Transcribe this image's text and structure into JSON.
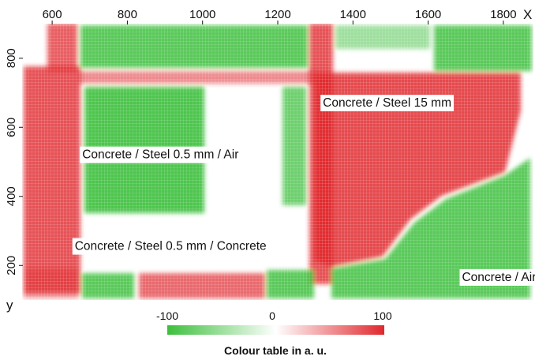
{
  "chart_data": {
    "type": "heatmap",
    "title": "",
    "xlabel": "X",
    "ylabel": "y",
    "x_ticks": [
      600,
      800,
      1000,
      1200,
      1400,
      1600,
      1800
    ],
    "y_ticks": [
      200,
      400,
      600,
      800
    ],
    "xlim": [
      520,
      1880
    ],
    "ylim": [
      100,
      900
    ],
    "colorbar": {
      "title": "Colour table in a. u.",
      "min": -100,
      "mid": 0,
      "max": 100,
      "min_label": "-100",
      "mid_label": "0",
      "max_label": "100",
      "low_color": "#3cbf3c",
      "mid_color": "#ffffff",
      "high_color": "#e0282d"
    },
    "regions": [
      {
        "label": "Concrete /  Steel 15 mm",
        "x": 1320,
        "y": 660
      },
      {
        "label": "Concrete /  Steel 0.5 mm  / Air",
        "x": 680,
        "y": 510
      },
      {
        "label": "Concrete /  Steel 0.5 mm  / Concrete",
        "x": 660,
        "y": 245
      },
      {
        "label": "Concrete / Air",
        "x": 1690,
        "y": 155
      }
    ]
  }
}
